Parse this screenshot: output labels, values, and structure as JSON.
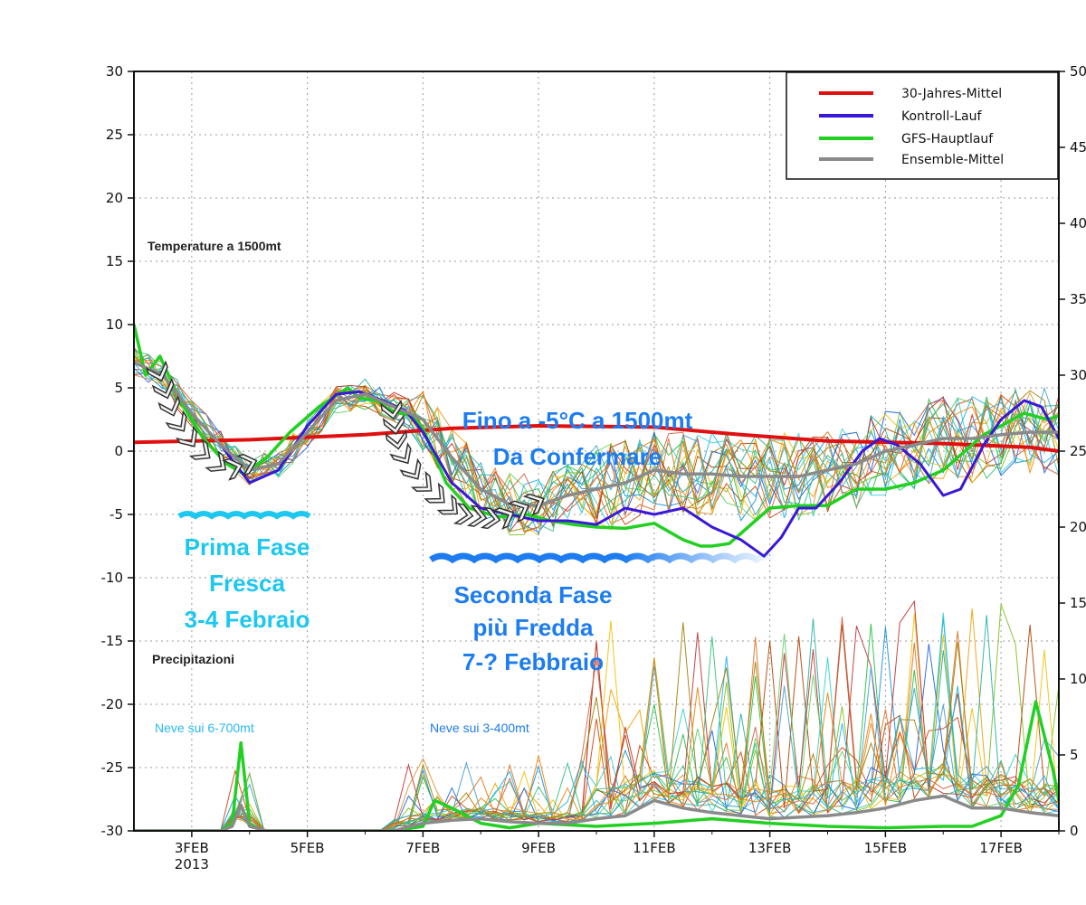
{
  "chart_data": {
    "type": "line",
    "title": "Temperature a 1500mt",
    "subtitle": "Precipitazioni",
    "x_ticks": [
      {
        "day": 3,
        "label": "3FEB"
      },
      {
        "day": 5,
        "label": "5FEB"
      },
      {
        "day": 7,
        "label": "7FEB"
      },
      {
        "day": 9,
        "label": "9FEB"
      },
      {
        "day": 11,
        "label": "11FEB"
      },
      {
        "day": 13,
        "label": "13FEB"
      },
      {
        "day": 15,
        "label": "15FEB"
      },
      {
        "day": 17,
        "label": "17FEB"
      }
    ],
    "x_year": "2013",
    "xlim": [
      2.0,
      18.0
    ],
    "left_axis": {
      "ylim": [
        -30,
        30
      ],
      "ticks": [
        30,
        25,
        20,
        15,
        10,
        5,
        0,
        -5,
        -10,
        -15,
        -20,
        -25,
        -30
      ]
    },
    "right_axis": {
      "ylim": [
        0,
        50
      ],
      "ticks": [
        50,
        45,
        40,
        35,
        30,
        25,
        20,
        15,
        10,
        5,
        0
      ]
    },
    "legend": [
      {
        "name": "30-Jahres-Mittel",
        "color": "#e01010"
      },
      {
        "name": "Kontroll-Lauf",
        "color": "#3a18d8"
      },
      {
        "name": "GFS-Hauptlauf",
        "color": "#22d022"
      },
      {
        "name": "Ensemble-Mittel",
        "color": "#8a8a8a"
      }
    ],
    "series": [
      {
        "name": "30-Jahres-Mittel",
        "axis": "left",
        "x": [
          2.0,
          4,
          6,
          7.5,
          9,
          11,
          12.5,
          14,
          16,
          17.5,
          18.0
        ],
        "y": [
          0.7,
          0.9,
          1.3,
          1.8,
          2.0,
          1.9,
          1.3,
          0.8,
          0.6,
          0.3,
          0.0
        ]
      },
      {
        "name": "GFS-Hauptlauf",
        "axis": "left",
        "x": [
          2.0,
          2.2,
          2.45,
          2.8,
          3.2,
          3.6,
          3.9,
          4.3,
          4.7,
          5.2,
          5.7,
          5.9,
          6.2,
          6.4,
          6.6,
          6.8,
          7.0,
          7.4,
          7.8,
          8.3,
          8.8,
          9.2,
          9.6,
          10.0,
          10.5,
          11.0,
          11.5,
          11.8,
          12.0,
          12.3,
          12.5,
          13.0,
          13.5,
          14.0,
          14.5,
          15.0,
          15.5,
          16.0,
          16.3,
          16.7,
          17.0,
          17.4,
          17.8,
          18.0
        ],
        "y": [
          10,
          6,
          7.5,
          4,
          1,
          -1,
          -1.8,
          -0.5,
          1.5,
          3.5,
          5,
          4.2,
          4.0,
          3.3,
          3.0,
          2.8,
          1.8,
          -2.5,
          -4.5,
          -5.2,
          -5.0,
          -5.5,
          -5.8,
          -6.0,
          -6.1,
          -5.7,
          -7.0,
          -7.5,
          -7.5,
          -7.3,
          -6.5,
          -4.5,
          -4.3,
          -4.3,
          -3.0,
          -3.0,
          -2.5,
          -1.5,
          -0.3,
          1.3,
          2.0,
          3.0,
          2.5,
          2.8
        ]
      },
      {
        "name": "Kontroll-Lauf",
        "axis": "left",
        "x": [
          2.0,
          2.5,
          3.0,
          3.5,
          4.0,
          4.5,
          5.0,
          5.5,
          5.9,
          6.3,
          6.7,
          7.0,
          7.5,
          8.0,
          8.5,
          9.0,
          9.5,
          10.0,
          10.5,
          11.0,
          11.5,
          12.0,
          12.5,
          12.9,
          13.2,
          13.5,
          13.8,
          14.2,
          14.6,
          14.9,
          15.2,
          15.6,
          16.0,
          16.3,
          16.7,
          17.0,
          17.4,
          17.7,
          18.0
        ],
        "y": [
          7,
          6,
          3,
          0.5,
          -2.5,
          -1.5,
          2,
          4.5,
          4.7,
          4.0,
          3.2,
          1.5,
          -2.5,
          -4.5,
          -5,
          -5.5,
          -5.5,
          -5.8,
          -4.5,
          -5.0,
          -4.5,
          -6.0,
          -7.0,
          -8.3,
          -6.8,
          -4.5,
          -4.5,
          -2.5,
          0.0,
          1.0,
          0.5,
          -1.0,
          -3.5,
          -3.0,
          0.5,
          2.5,
          4.0,
          3.5,
          1.0
        ]
      },
      {
        "name": "Ensemble-Mittel",
        "axis": "left",
        "x": [
          2.0,
          2.5,
          3.0,
          3.5,
          4.0,
          4.5,
          5.0,
          5.5,
          6.0,
          6.5,
          7.0,
          7.5,
          8.0,
          8.5,
          9.0,
          9.5,
          10.0,
          10.5,
          11.0,
          11.5,
          12.0,
          12.5,
          13.0,
          13.5,
          14.0,
          14.5,
          15.0,
          15.5,
          16.0,
          16.5,
          17.0,
          17.5,
          18.0
        ],
        "y": [
          7,
          6,
          3,
          0.5,
          -1.5,
          -1.0,
          1.5,
          4.0,
          4.5,
          3.5,
          2.5,
          -0.5,
          -3.0,
          -4.2,
          -4.3,
          -3.5,
          -3.0,
          -2.5,
          -1.5,
          -1.8,
          -1.8,
          -2.0,
          -2.0,
          -2.0,
          -1.5,
          -1.0,
          0.0,
          0.5,
          1.0,
          1.0,
          1.3,
          1.5,
          1.5
        ]
      },
      {
        "name": "Precip GFS-Hauptlauf",
        "axis": "right",
        "x": [
          2.0,
          3.5,
          3.7,
          3.85,
          4.0,
          4.2,
          4.5,
          6.5,
          7.0,
          7.2,
          7.5,
          8.0,
          8.5,
          9.0,
          10.0,
          11.0,
          12.0,
          13.0,
          14.0,
          15.0,
          16.0,
          16.5,
          17.0,
          17.3,
          17.6,
          17.9,
          18.0
        ],
        "y": [
          0,
          0,
          0.5,
          5.8,
          0.5,
          0,
          0,
          0,
          0.3,
          2.0,
          1.5,
          0.5,
          0.2,
          0.5,
          0.3,
          0.5,
          0.8,
          0.5,
          0.3,
          0.2,
          0.3,
          0.3,
          1.0,
          3.0,
          8.5,
          4.0,
          2.0
        ]
      },
      {
        "name": "Precip Ensemble-Mittel",
        "axis": "right",
        "x": [
          2.0,
          3.5,
          3.7,
          3.85,
          4.0,
          4.3,
          6.5,
          7.0,
          7.5,
          8.0,
          8.5,
          9.0,
          9.5,
          10.0,
          10.5,
          11.0,
          11.5,
          12.0,
          12.5,
          13.0,
          13.5,
          14.0,
          14.5,
          15.0,
          15.5,
          16.0,
          16.5,
          17.0,
          17.5,
          18.0
        ],
        "y": [
          0,
          0,
          0.3,
          1.7,
          0.3,
          0,
          0,
          0.5,
          0.7,
          0.8,
          0.6,
          0.5,
          0.5,
          0.8,
          1.0,
          2.0,
          1.5,
          1.2,
          1.0,
          0.8,
          0.9,
          1.0,
          1.2,
          1.5,
          2.0,
          2.3,
          1.5,
          1.5,
          1.2,
          1.0
        ]
      }
    ]
  },
  "annotations": {
    "temp_title": "Temperature a 1500mt",
    "precip_title": "Precipitazioni",
    "phase1_line1": "Prima Fase",
    "phase1_line2": "Fresca",
    "phase1_line3": "3-4 Febraio",
    "phase2_line1": "Seconda Fase",
    "phase2_line2": "più Fredda",
    "phase2_line3": "7-? Febbraio",
    "cold_line1": "Fino a -5°C a 1500mt",
    "cold_line2": "Da Confermare",
    "snow1": "Neve sui 6-700mt",
    "snow2": "Neve sui 3-400mt"
  },
  "colors": {
    "frame": "#111111",
    "grid": "#9a9a9a",
    "cyan": "#1cc7f0",
    "blue": "#1c7cf0"
  }
}
